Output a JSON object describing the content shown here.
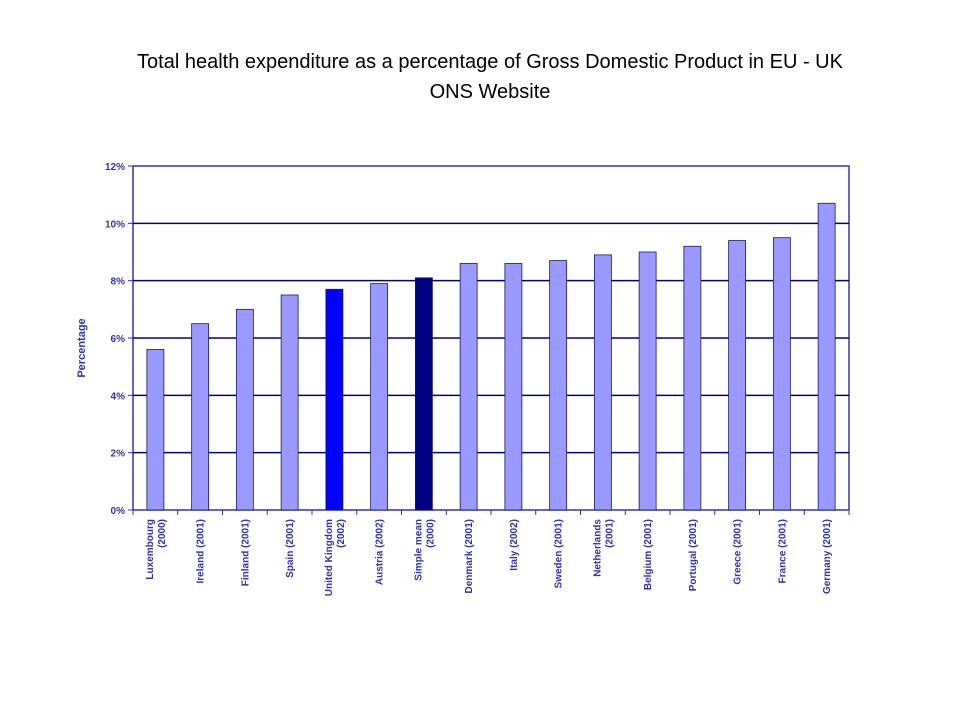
{
  "slide": {
    "title_line1": "Total health expenditure as a percentage of Gross Domestic Product in EU  - UK",
    "title_line2": "ONS  Website"
  },
  "colors": {
    "bar": "#9999ff",
    "uk_bar": "#0000ff",
    "mean_bar": "#000080",
    "axis_text": "#3333aa",
    "frame": "#3333aa",
    "gridline": "#000080"
  },
  "chart_data": {
    "type": "bar",
    "title": "Total health expenditure as a percentage of Gross Domestic Product in EU  - UK ONS  Website",
    "xlabel": "",
    "ylabel": "Percentage",
    "ylim": [
      0,
      12
    ],
    "yticks": [
      "0%",
      "2%",
      "4%",
      "6%",
      "8%",
      "10%",
      "12%"
    ],
    "grid": true,
    "legend": "none",
    "categories": [
      [
        "Luxembourg",
        "(2000)"
      ],
      [
        "Ireland (2001)"
      ],
      [
        "Finland (2001)"
      ],
      [
        "Spain (2001)"
      ],
      [
        "United Kingdom",
        "(2002)"
      ],
      [
        "Austria (2002)"
      ],
      [
        "Simple mean",
        "(2000)"
      ],
      [
        "Denmark (2001)"
      ],
      [
        "Italy (2002)"
      ],
      [
        "Sweden (2001)"
      ],
      [
        "Netherlands",
        "(2001)"
      ],
      [
        "Belgium (2001)"
      ],
      [
        "Portugal (2001)"
      ],
      [
        "Greece (2001)"
      ],
      [
        "France (2001)"
      ],
      [
        "Germany (2001)"
      ]
    ],
    "values": [
      5.6,
      6.5,
      7.0,
      7.5,
      7.7,
      7.9,
      8.1,
      8.6,
      8.6,
      8.7,
      8.9,
      9.0,
      9.2,
      9.4,
      9.5,
      10.7
    ],
    "bar_colors": [
      "#9999ff",
      "#9999ff",
      "#9999ff",
      "#9999ff",
      "#0000ff",
      "#9999ff",
      "#000080",
      "#9999ff",
      "#9999ff",
      "#9999ff",
      "#9999ff",
      "#9999ff",
      "#9999ff",
      "#9999ff",
      "#9999ff",
      "#9999ff"
    ]
  }
}
